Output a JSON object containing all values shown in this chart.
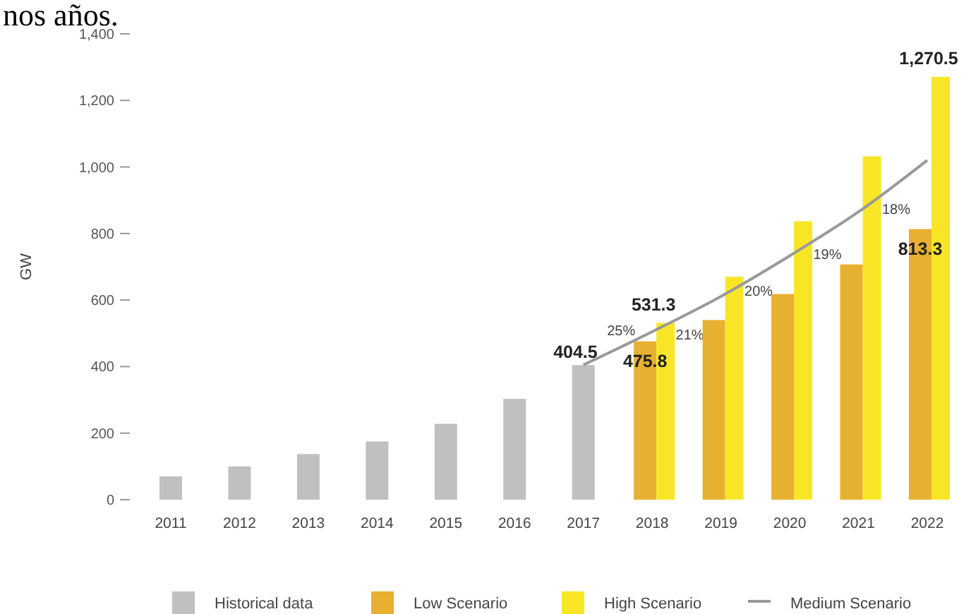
{
  "chart_data": {
    "type": "bar",
    "ylabel": "GW",
    "annotations": [
      "nos años.",
      {
        "text": "25%",
        "x": "2018",
        "y": 509
      },
      {
        "text": "21%",
        "x": "2019",
        "y": 496
      },
      {
        "text": "20%",
        "x": "2020",
        "y": 628
      },
      {
        "text": "19%",
        "x": "2021",
        "y": 739
      },
      {
        "text": "18%",
        "x": "2022",
        "y": 874
      }
    ],
    "categories": [
      "2011",
      "2012",
      "2013",
      "2014",
      "2015",
      "2016",
      "2017",
      "2018",
      "2019",
      "2020",
      "2021",
      "2022"
    ],
    "ylim": [
      0,
      1400
    ],
    "yticks": [
      {
        "value": 0,
        "label": "0"
      },
      {
        "value": 200,
        "label": "200"
      },
      {
        "value": 400,
        "label": "400"
      },
      {
        "value": 600,
        "label": "600"
      },
      {
        "value": 800,
        "label": "800"
      },
      {
        "value": 1000,
        "label": "1,000"
      },
      {
        "value": 1200,
        "label": "1,200"
      },
      {
        "value": 1400,
        "label": "1,400"
      }
    ],
    "grid": false,
    "legend": "bottom",
    "series": [
      {
        "name": "Historical data",
        "color": "#c0c0c2",
        "values": [
          70,
          100,
          137,
          175,
          228,
          303,
          404.5,
          null,
          null,
          null,
          null,
          null
        ],
        "value_labels": [
          null,
          null,
          null,
          null,
          null,
          null,
          "404.5",
          null,
          null,
          null,
          null,
          null
        ]
      },
      {
        "name": "Low Scenario",
        "color": "#e8b030",
        "values": [
          null,
          null,
          null,
          null,
          null,
          null,
          null,
          475.8,
          540,
          618,
          707,
          813.3
        ],
        "value_labels": [
          null,
          null,
          null,
          null,
          null,
          null,
          null,
          "475.8",
          null,
          null,
          null,
          "813.3"
        ]
      },
      {
        "name": "High Scenario",
        "color": "#f8e626",
        "values": [
          null,
          null,
          null,
          null,
          null,
          null,
          null,
          531.3,
          670,
          837,
          1032,
          1270.5
        ],
        "value_labels": [
          null,
          null,
          null,
          null,
          null,
          null,
          null,
          "531.3",
          null,
          null,
          null,
          "1,270.5"
        ]
      },
      {
        "name": "Medium Scenario",
        "type": "line",
        "color": "#999999",
        "values": [
          null,
          null,
          null,
          null,
          null,
          null,
          405,
          505,
          611,
          733,
          865,
          1020
        ]
      }
    ]
  }
}
